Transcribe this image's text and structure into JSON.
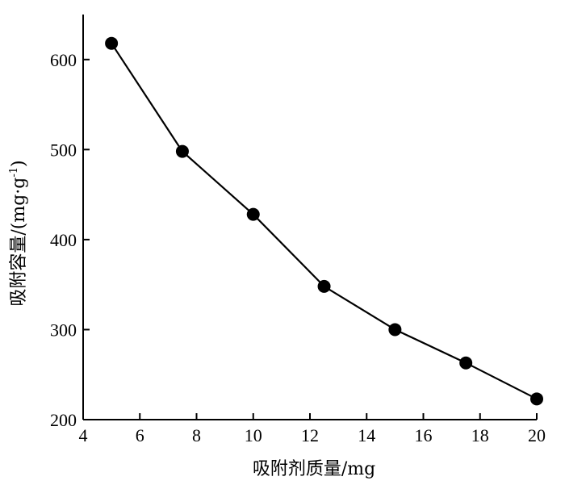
{
  "chart_data": {
    "type": "line",
    "title": "",
    "xlabel": "吸附剂质量/mg",
    "ylabel_main": "吸附容量/(mg·g",
    "ylabel_sup": "-1",
    "ylabel_end": ")",
    "xlim": [
      4,
      20
    ],
    "ylim": [
      200,
      650
    ],
    "x_ticks": [
      4,
      6,
      8,
      10,
      12,
      14,
      16,
      18,
      20
    ],
    "y_ticks": [
      200,
      300,
      400,
      500,
      600
    ],
    "grid": false,
    "series": [
      {
        "x": [
          5,
          7.5,
          10,
          12.5,
          15,
          17.5,
          20
        ],
        "y": [
          618,
          498,
          428,
          348,
          300,
          263,
          223
        ]
      }
    ]
  }
}
